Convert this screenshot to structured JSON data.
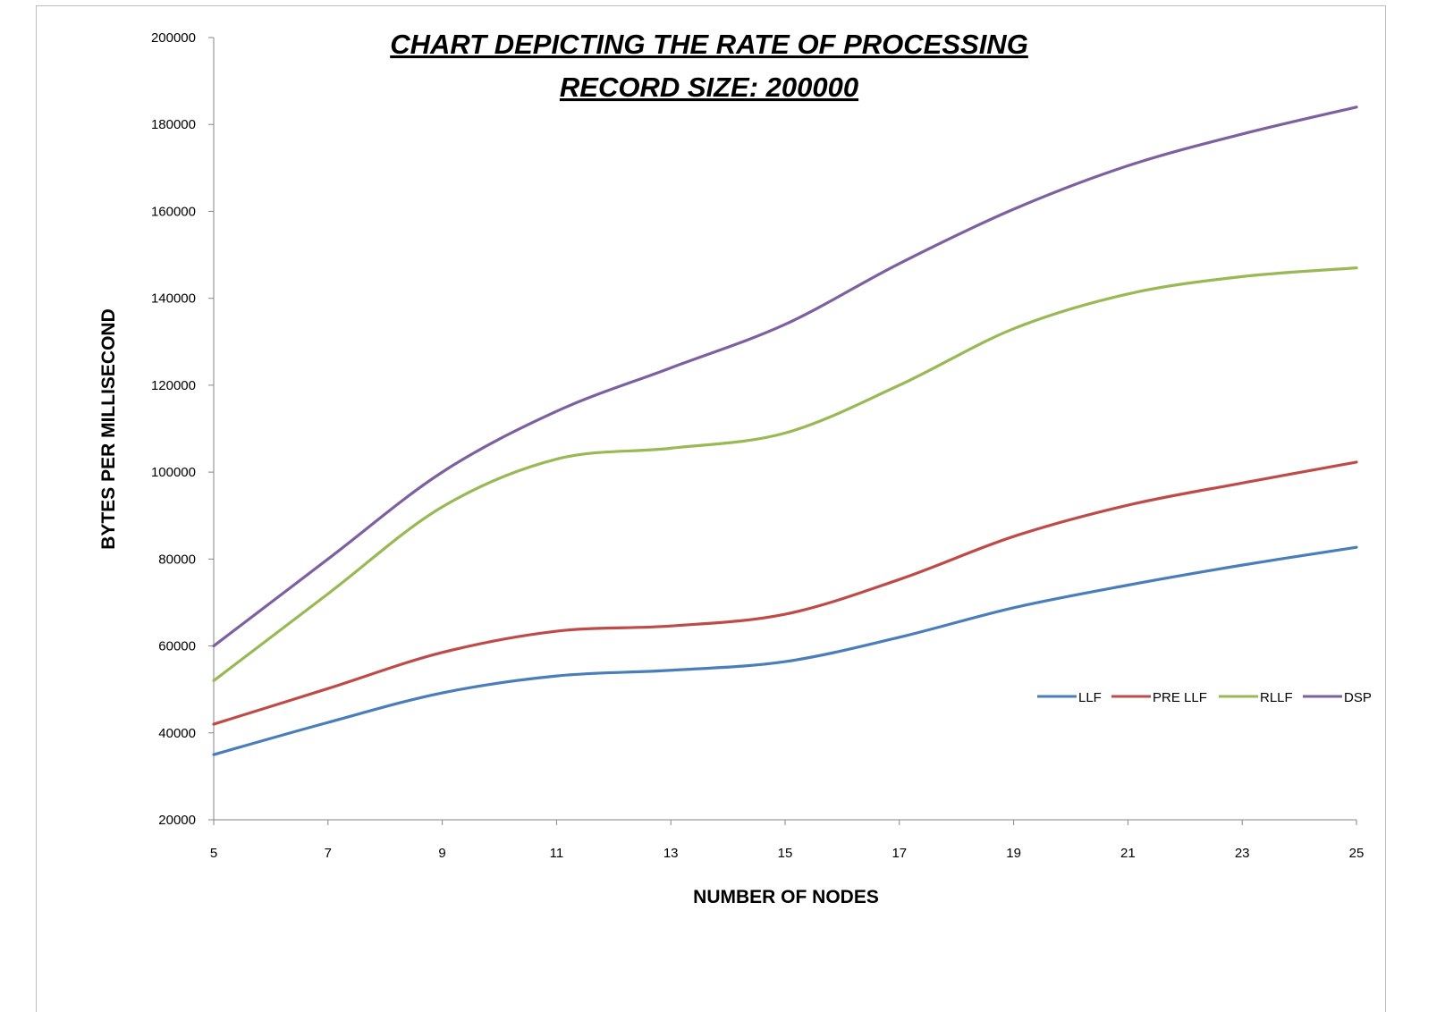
{
  "chart_data": {
    "type": "line",
    "title": "CHART  DEPICTING THE  RATE OF  PROCESSING",
    "subtitle": "RECORD SIZE: 200000",
    "xlabel": "NUMBER OF NODES",
    "ylabel": "BYTES PER MILLISECOND",
    "x": [
      5,
      7,
      9,
      11,
      13,
      15,
      17,
      19,
      21,
      23,
      25
    ],
    "xlim": [
      5,
      25
    ],
    "ylim": [
      20000,
      200000
    ],
    "yticks": [
      20000,
      40000,
      60000,
      80000,
      100000,
      120000,
      140000,
      160000,
      180000,
      200000
    ],
    "grid": false,
    "smooth": true,
    "legend_position": "right",
    "series": [
      {
        "name": "LLF",
        "color": "#4a7ebb",
        "values": [
          35000,
          42400,
          49200,
          53100,
          54400,
          56400,
          62000,
          68800,
          74000,
          78600,
          82700
        ]
      },
      {
        "name": "PRE LLF",
        "color": "#be4b48",
        "values": [
          42000,
          50200,
          58500,
          63400,
          64600,
          67300,
          75300,
          85200,
          92400,
          97500,
          102300
        ]
      },
      {
        "name": "RLLF",
        "color": "#98b954",
        "values": [
          52000,
          72000,
          92000,
          103000,
          105500,
          109000,
          120000,
          133000,
          141000,
          145000,
          147000
        ]
      },
      {
        "name": "DSP",
        "color": "#7d60a0",
        "values": [
          60000,
          80000,
          100000,
          114000,
          124000,
          134000,
          148000,
          160500,
          170500,
          177800,
          184000
        ]
      }
    ]
  }
}
